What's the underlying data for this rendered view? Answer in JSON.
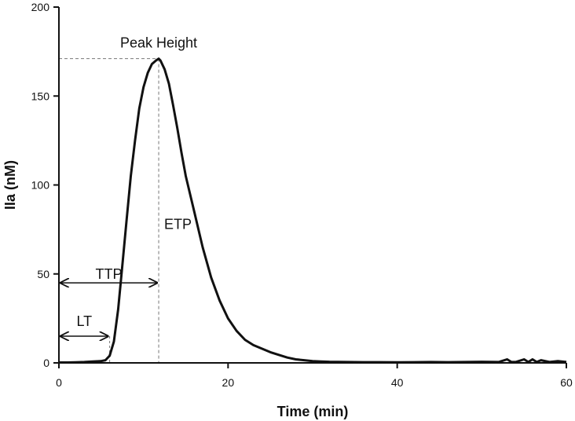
{
  "chart_data": {
    "type": "line",
    "xlabel": "Time (min)",
    "ylabel": "IIa (nM)",
    "xlim": [
      0,
      60
    ],
    "ylim": [
      0,
      200
    ],
    "xticks": [
      0,
      20,
      40,
      60
    ],
    "yticks": [
      0,
      50,
      100,
      150,
      200
    ],
    "grid": false,
    "series": [
      {
        "color": "#111111",
        "x": [
          0,
          1,
          2,
          3,
          4,
          5,
          5.5,
          6,
          6.5,
          7,
          7.5,
          8,
          8.5,
          9,
          9.5,
          10,
          10.5,
          11,
          11.5,
          11.8,
          12,
          12.5,
          13,
          13.5,
          14,
          14.5,
          15,
          16,
          17,
          18,
          19,
          20,
          21,
          22,
          23,
          24,
          25,
          26,
          27,
          28,
          29,
          30,
          31,
          32,
          34,
          36,
          38,
          40,
          42,
          44,
          46,
          48,
          50,
          52,
          53,
          53.5,
          54,
          55,
          55.5,
          56,
          56.5,
          57,
          58,
          59,
          60
        ],
        "y": [
          0.2,
          0.2,
          0.3,
          0.5,
          0.8,
          1,
          1.5,
          4,
          12,
          30,
          55,
          80,
          105,
          125,
          143,
          155,
          163,
          168,
          170,
          171,
          170,
          165,
          157,
          145,
          132,
          118,
          105,
          85,
          65,
          48,
          35,
          25,
          18,
          13,
          10,
          8,
          6,
          4.5,
          3,
          2,
          1.5,
          1,
          0.8,
          0.6,
          0.5,
          0.4,
          0.4,
          0.3,
          0.4,
          0.5,
          0.4,
          0.5,
          0.6,
          0.5,
          2,
          0.5,
          0.5,
          2,
          0.5,
          2,
          0.5,
          1.5,
          0.5,
          1,
          0.5
        ]
      }
    ],
    "annotations": {
      "peak_height": {
        "label": "Peak Height",
        "x": 11.8,
        "y": 171
      },
      "etp": {
        "label": "ETP"
      },
      "ttp": {
        "label": "TTP",
        "x_start": 0,
        "x_end": 11.8,
        "y": 45
      },
      "lt": {
        "label": "LT",
        "x_start": 0,
        "x_end": 6,
        "y": 15
      }
    }
  }
}
